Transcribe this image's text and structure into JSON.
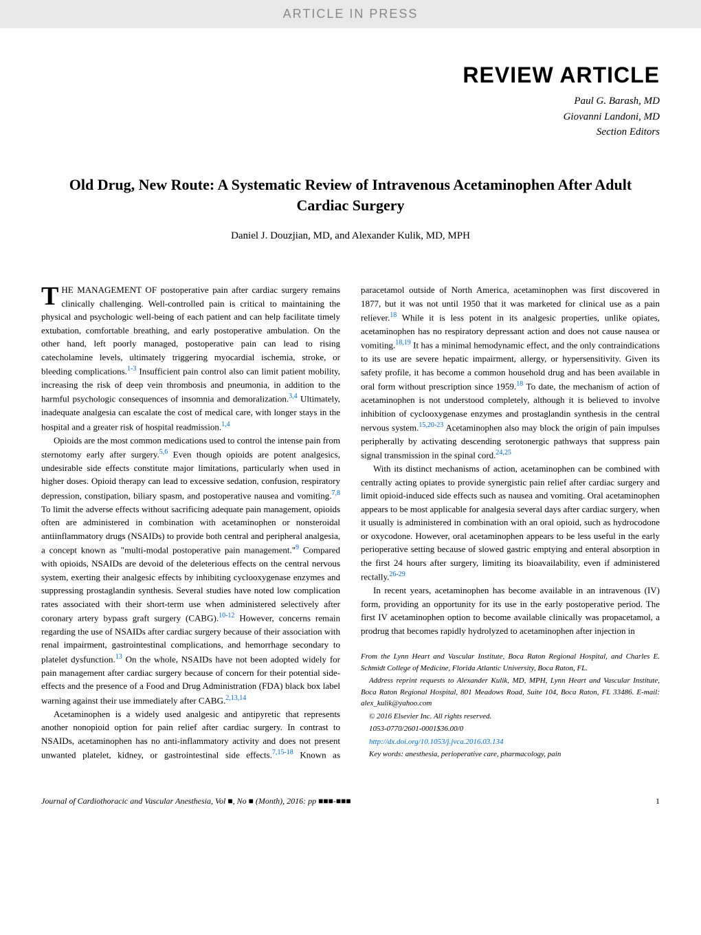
{
  "header": {
    "banner": "ARTICLE IN PRESS"
  },
  "review_label": "REVIEW ARTICLE",
  "editors": {
    "line1": "Paul G. Barash, MD",
    "line2": "Giovanni Landoni, MD",
    "line3": "Section Editors"
  },
  "title": "Old Drug, New Route: A Systematic Review of Intravenous Acetaminophen After Adult Cardiac Surgery",
  "authors": "Daniel J. Douzjian, MD, and Alexander Kulik, MD, MPH",
  "body": {
    "p1_dropcap": "T",
    "p1_leadcaps": "HE MANAGEMENT OF",
    "p1_rest": " postoperative pain after cardiac surgery remains clinically challenging. Well-controlled pain is critical to maintaining the physical and psychologic well-being of each patient and can help facilitate timely extubation, comfortable breathing, and early postoperative ambulation. On the other hand, left poorly managed, postoperative pain can lead to rising catecholamine levels, ultimately triggering myocardial ischemia, stroke, or bleeding complications.",
    "p1_ref1": "1-3",
    "p1_cont": " Insufficient pain control also can limit patient mobility, increasing the risk of deep vein thrombosis and pneumonia, in addition to the harmful psychologic consequences of insomnia and demoralization.",
    "p1_ref2": "3,4",
    "p1_cont2": " Ultimately, inadequate analgesia can escalate the cost of medical care, with longer stays in the hospital and a greater risk of hospital readmission.",
    "p1_ref3": "1,4",
    "p2": "Opioids are the most common medications used to control the intense pain from sternotomy early after surgery.",
    "p2_ref1": "5,6",
    "p2_cont": " Even though opioids are potent analgesics, undesirable side effects constitute major limitations, particularly when used in higher doses. Opioid therapy can lead to excessive sedation, confusion, respiratory depression, constipation, biliary spasm, and postoperative nausea and vomiting.",
    "p2_ref2": "7,8",
    "p2_cont2": " To limit the adverse effects without sacrificing adequate pain management, opioids often are administered in combination with acetaminophen or nonsteroidal antiinflammatory drugs (NSAIDs) to provide both central and peripheral analgesia, a concept known as \"multi-modal postoperative pain management.\"",
    "p2_ref3": "9",
    "p2_cont3": " Compared with opioids, NSAIDs are devoid of the deleterious effects on the central nervous system, exerting their analgesic effects by inhibiting cyclooxygenase enzymes and suppressing prostaglandin synthesis. Several studies have noted low complication rates associated with their short-term use when administered selectively after coronary artery bypass graft surgery (CABG).",
    "p2_ref4": "10-12",
    "p2_cont4": " However, concerns remain regarding the use of NSAIDs after cardiac surgery because of their association with renal impairment, gastrointestinal complications, and hemorrhage secondary to platelet dysfunction.",
    "p2_ref5": "13",
    "p2_cont5": " On the whole, NSAIDs have not been adopted widely for pain management after cardiac surgery because of concern for their potential side-effects and the presence of a Food and Drug Administration (FDA) black box label warning against their use immediately after CABG.",
    "p2_ref6": "2,13,14",
    "p3": "Acetaminophen is a widely used analgesic and antipyretic that represents another nonopioid option for pain relief after cardiac surgery. In contrast to NSAIDs, acetaminophen has no anti-inflammatory activity and does not present unwanted platelet, kidney, or gastrointestinal side effects.",
    "p3_ref1": "7,15-18",
    "p3_cont": " Known as paracetamol outside of North America, acetaminophen was first discovered in 1877, but it was not until 1950 that it was marketed for clinical use as a pain reliever.",
    "p3_ref2": "18",
    "p3_cont2": " While it is less potent in its analgesic properties, unlike opiates, acetaminophen has no respiratory depressant action and does not cause nausea or vomiting.",
    "p3_ref3": "18,19",
    "p3_cont3": " It has a minimal hemodynamic effect, and the only contraindications to its use are severe hepatic impairment, allergy, or hypersensitivity. Given its safety profile, it has become a common household drug and has been available in oral form without prescription since 1959.",
    "p3_ref4": "18",
    "p3_cont4": " To date, the mechanism of action of acetaminophen is not understood completely, although it is believed to involve inhibition of cyclooxygenase enzymes and prostaglandin synthesis in the central nervous system.",
    "p3_ref5": "15,20-23",
    "p3_cont5": " Acetaminophen also may block the origin of pain impulses peripherally by activating descending serotonergic pathways that suppress pain signal transmission in the spinal cord.",
    "p3_ref6": "24,25",
    "p4": "With its distinct mechanisms of action, acetaminophen can be combined with centrally acting opiates to provide synergistic pain relief after cardiac surgery and limit opioid-induced side effects such as nausea and vomiting. Oral acetaminophen appears to be most applicable for analgesia several days after cardiac surgery, when it usually is administered in combination with an oral opioid, such as hydrocodone or oxycodone. However, oral acetaminophen appears to be less useful in the early perioperative setting because of slowed gastric emptying and enteral absorption in the first 24 hours after surgery, limiting its bioavailability, even if administered rectally.",
    "p4_ref1": "26-29",
    "p5": "In recent years, acetaminophen has become available in an intravenous (IV) form, providing an opportunity for its use in the early postoperative period. The first IV acetaminophen option to become available clinically was propacetamol, a prodrug that becomes rapidly hydrolyzed to acetaminophen after injection in"
  },
  "footer": {
    "affiliation": "From the Lynn Heart and Vascular Institute, Boca Raton Regional Hospital, and Charles E. Schmidt College of Medicine, Florida Atlantic University, Boca Raton, FL.",
    "reprint": "Address reprint requests to Alexander Kulik, MD, MPH, Lynn Heart and Vascular Institute, Boca Raton Regional Hospital, 801 Meadows Road, Suite 104, Boca Raton, FL 33486. E-mail: alex_kulik@yahoo.com",
    "copyright": "© 2016 Elsevier Inc. All rights reserved.",
    "issn": "1053-0770/2601-0001$36.00/0",
    "doi": "http://dx.doi.org/10.1053/j.jvca.2016.03.134",
    "keywords": "Key words: anesthesia, perioperative care, pharmacology, pain"
  },
  "journal_footer": {
    "citation": "Journal of Cardiothoracic and Vascular Anesthesia, Vol ■, No ■ (Month), 2016: pp ■■■-■■■",
    "page": "1"
  },
  "colors": {
    "banner_bg": "#e8e8e8",
    "banner_text": "#888888",
    "ref_color": "#0066cc",
    "link_color": "#0066cc",
    "text_color": "#000000"
  }
}
